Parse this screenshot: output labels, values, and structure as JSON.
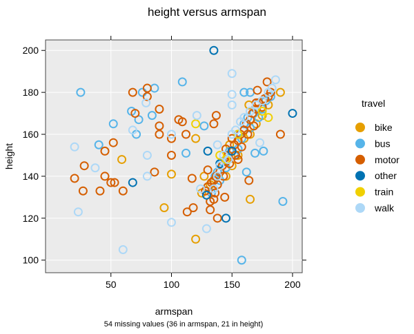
{
  "chart_data": {
    "type": "scatter",
    "title": "height versus armspan",
    "xlabel": "armspan",
    "ylabel": "height",
    "note": "54 missing values (36 in armspan, 21 in height)",
    "xlim": [
      -4,
      208
    ],
    "ylim": [
      94,
      205
    ],
    "xticks": [
      50,
      100,
      150,
      200
    ],
    "yticks": [
      100,
      120,
      140,
      160,
      180,
      200
    ],
    "grid": true,
    "legend": {
      "title": "travel",
      "position": "right"
    },
    "series": [
      {
        "name": "bike",
        "color": "#E69F00",
        "x": [
          59,
          94,
          100,
          120,
          127,
          125,
          165,
          120,
          164,
          190,
          132,
          145,
          150,
          155,
          160,
          165,
          170,
          175,
          180,
          148
        ],
        "y": [
          148,
          125,
          141,
          158,
          140,
          132,
          129,
          110,
          174,
          180,
          136,
          140,
          145,
          150,
          158,
          160,
          165,
          169,
          174,
          155
        ]
      },
      {
        "name": "bus",
        "color": "#56B4E9",
        "x": [
          25,
          40,
          52,
          67,
          71,
          73,
          76,
          86,
          84,
          109,
          160,
          165,
          127,
          112,
          176,
          169,
          162,
          192,
          158,
          133,
          138,
          142,
          145,
          148,
          152,
          155,
          158,
          160,
          163,
          165,
          168,
          172,
          175,
          178,
          182,
          140,
          136
        ],
        "y": [
          180,
          155,
          165,
          171,
          160,
          167,
          180,
          182,
          169,
          185,
          180,
          180,
          164,
          151,
          152,
          151,
          142,
          128,
          100,
          132,
          142,
          147,
          144,
          152,
          150,
          153,
          158,
          165,
          168,
          163,
          170,
          168,
          172,
          176,
          178,
          138,
          140
        ]
      },
      {
        "name": "motor",
        "color": "#D55E00",
        "x": [
          20,
          27,
          28,
          45,
          45,
          41,
          50,
          53,
          52,
          60,
          68,
          70,
          80,
          80,
          90,
          90,
          90,
          86,
          100,
          100,
          179,
          171,
          170,
          137,
          106,
          109,
          135,
          112,
          190,
          117,
          130,
          164,
          144,
          135,
          118,
          113,
          132,
          138,
          130,
          133,
          135,
          137,
          138,
          140,
          142,
          143,
          145,
          147,
          148,
          150,
          152,
          153,
          155,
          157,
          158,
          160,
          162,
          163,
          165,
          167,
          168,
          170,
          172,
          175,
          177,
          180,
          182,
          132,
          128,
          136,
          150,
          145,
          155
        ],
        "y": [
          139,
          133,
          145,
          152,
          140,
          133,
          137,
          137,
          156,
          133,
          180,
          170,
          182,
          178,
          172,
          164,
          160,
          142,
          158,
          150,
          185,
          181,
          175,
          169,
          167,
          166,
          165,
          160,
          160,
          139,
          143,
          138,
          130,
          129,
          125,
          123,
          124,
          120,
          135,
          137,
          138,
          140,
          136,
          142,
          145,
          140,
          147,
          150,
          146,
          152,
          155,
          150,
          157,
          160,
          154,
          162,
          165,
          160,
          167,
          170,
          164,
          172,
          175,
          173,
          177,
          178,
          180,
          128,
          133,
          132,
          158,
          153,
          148
        ]
      },
      {
        "name": "other",
        "color": "#0072B2",
        "x": [
          68,
          135,
          200,
          130,
          129,
          145,
          140,
          155,
          150
        ],
        "y": [
          137,
          200,
          170,
          152,
          131,
          120,
          146,
          160,
          152
        ]
      },
      {
        "name": "train",
        "color": "#F0D000",
        "x": [
          180,
          120,
          145,
          155,
          175,
          140
        ],
        "y": [
          168,
          165,
          148,
          160,
          171,
          150
        ]
      },
      {
        "name": "walk",
        "color": "#ADD8F7",
        "x": [
          20,
          23,
          37,
          60,
          68,
          79,
          80,
          80,
          100,
          100,
          150,
          186,
          150,
          150,
          121,
          173,
          138,
          124,
          129,
          135,
          140,
          143,
          147,
          150,
          153,
          157,
          160,
          165,
          170,
          175,
          180,
          183,
          138
        ],
        "y": [
          154,
          123,
          144,
          105,
          162,
          175,
          150,
          140,
          160,
          118,
          189,
          186,
          179,
          174,
          169,
          156,
          155,
          134,
          115,
          134,
          145,
          150,
          148,
          160,
          162,
          166,
          168,
          171,
          174,
          176,
          180,
          182,
          140
        ]
      }
    ]
  }
}
